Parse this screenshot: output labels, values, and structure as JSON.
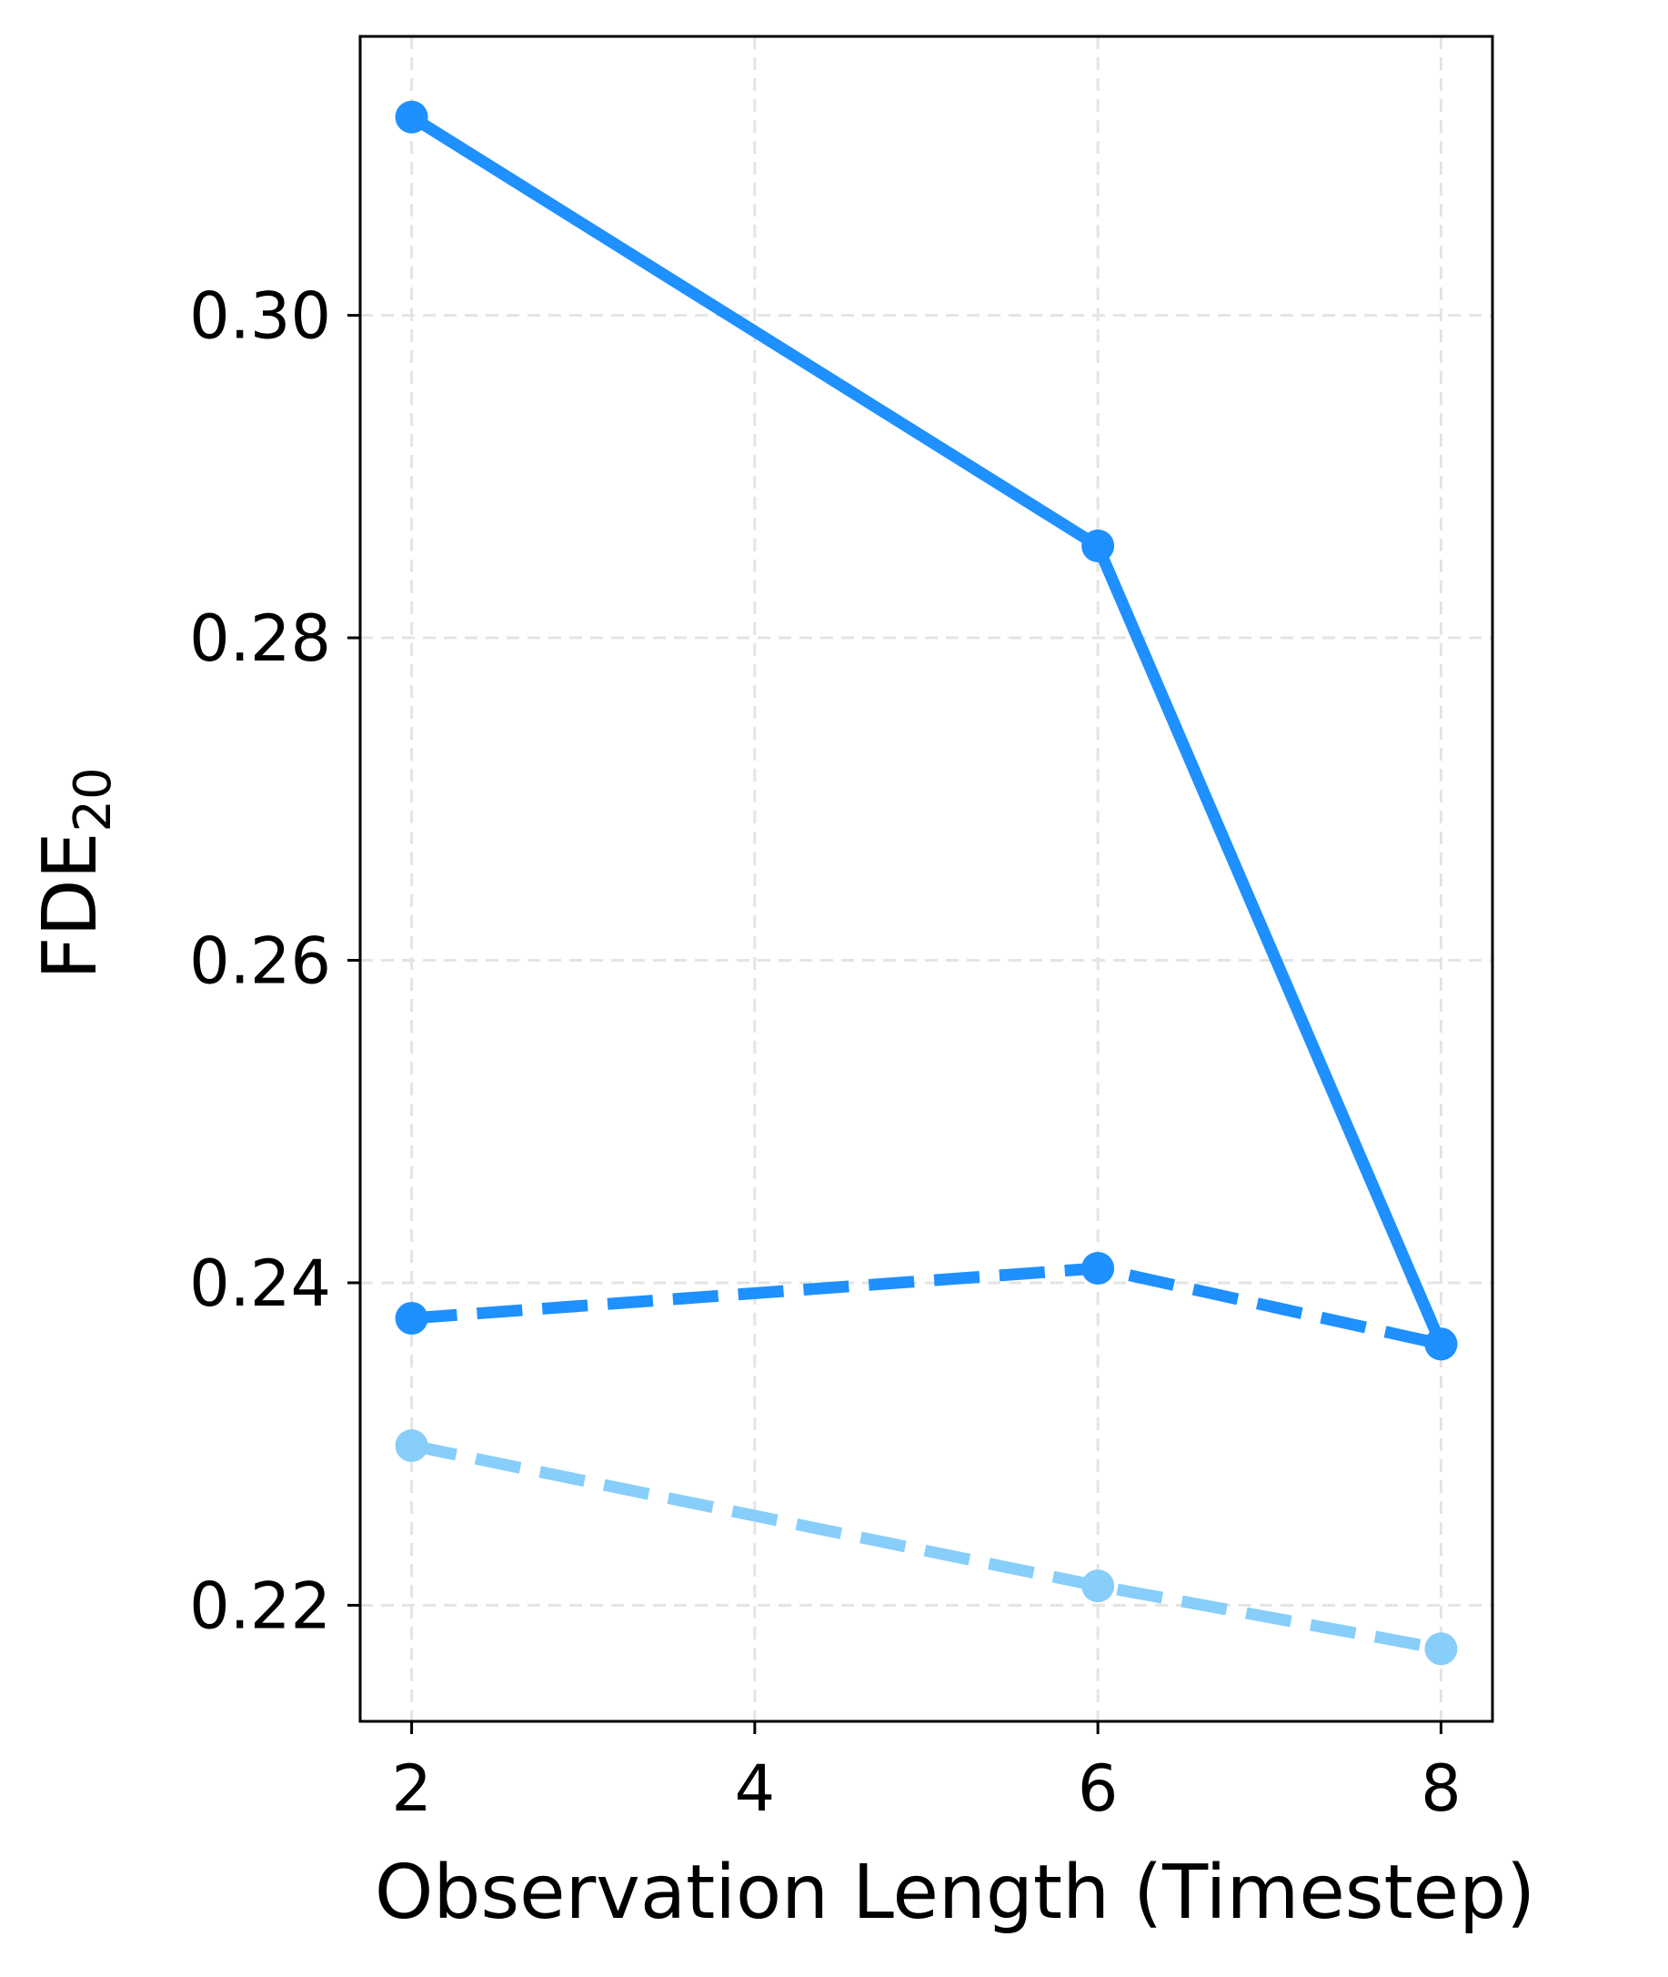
{
  "chart_data": {
    "type": "line",
    "title": "",
    "xlabel": "Observation Length (Timestep)",
    "ylabel": {
      "base": "FDE",
      "subscript": "20"
    },
    "x_ticks": [
      2,
      4,
      6,
      8
    ],
    "y_ticks": [
      "0.22",
      "0.24",
      "0.26",
      "0.28",
      "0.30"
    ],
    "xlim": [
      1.7,
      8.3
    ],
    "ylim": [
      0.2128,
      0.3173
    ],
    "grid": true,
    "series": [
      {
        "style": "solid",
        "color": "#1E90FF",
        "x": [
          2,
          6,
          8
        ],
        "y": [
          0.3123,
          0.2857,
          0.2362
        ]
      },
      {
        "style": "dashed",
        "color": "#1E90FF",
        "x": [
          2,
          6,
          8
        ],
        "y": [
          0.2378,
          0.2409,
          0.2362
        ]
      },
      {
        "style": "dashed",
        "color": "#87CEFA",
        "x": [
          2,
          6,
          8
        ],
        "y": [
          0.2299,
          0.2212,
          0.2173
        ]
      }
    ]
  }
}
